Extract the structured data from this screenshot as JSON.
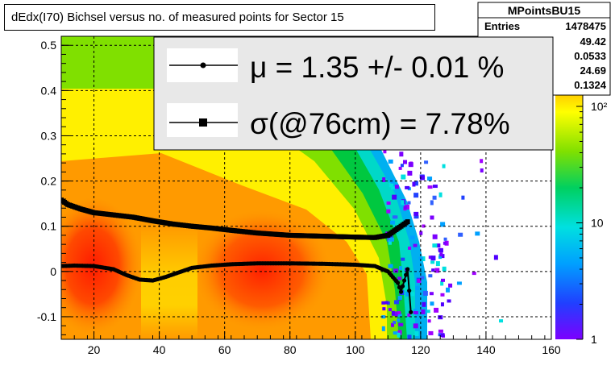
{
  "title": "dEdx(I70) Bichsel versus no. of measured points for Sector 15",
  "stats": {
    "name": "MPointsBU15",
    "entries_label": "Entries",
    "entries_value": "1478475",
    "partial_values": [
      "49.42",
      "0.0533",
      "24.69",
      "0.1324"
    ]
  },
  "legend": {
    "mu_text": "μ  =  1.35 +/-  0.01 %",
    "sigma_text": "σ(@76cm) =  7.78%"
  },
  "chart_data": {
    "type": "heatmap",
    "title": "dEdx(I70) Bichsel versus no. of measured points for Sector 15",
    "xlim": [
      10,
      160
    ],
    "ylim": [
      -0.15,
      0.52
    ],
    "x_ticks": [
      20,
      40,
      60,
      80,
      100,
      120,
      140,
      160
    ],
    "y_ticks": [
      -0.1,
      0,
      0.1,
      0.2,
      0.3,
      0.4,
      0.5
    ],
    "y_tick_labels": [
      "-0.1",
      "0",
      "0.1",
      "0.2",
      "0.3",
      "0.4",
      "0.5"
    ],
    "z_scale": "log",
    "z_ticks": [
      1,
      10,
      100
    ],
    "z_tick_labels": [
      "1",
      "10",
      "10²"
    ],
    "grid": true,
    "series": [
      {
        "name": "μ",
        "marker": "circle",
        "x": [
          10,
          14,
          20,
          26,
          30,
          34,
          38,
          42,
          46,
          50,
          56,
          62,
          70,
          80,
          90,
          100,
          106,
          110,
          113,
          114,
          116,
          117
        ],
        "y": [
          0.012,
          0.013,
          0.012,
          0.005,
          -0.008,
          -0.018,
          -0.02,
          -0.012,
          -0.002,
          0.008,
          0.013,
          0.016,
          0.018,
          0.018,
          0.017,
          0.015,
          0.012,
          0.0,
          -0.025,
          -0.045,
          0.005,
          -0.09
        ]
      },
      {
        "name": "σ(@76cm)",
        "marker": "square",
        "x": [
          10,
          12,
          16,
          20,
          26,
          32,
          38,
          44,
          50,
          56,
          62,
          70,
          80,
          90,
          100,
          106,
          110,
          113,
          116
        ],
        "y": [
          0.158,
          0.148,
          0.138,
          0.13,
          0.125,
          0.12,
          0.112,
          0.105,
          0.1,
          0.096,
          0.091,
          0.085,
          0.08,
          0.078,
          0.076,
          0.075,
          0.08,
          0.095,
          0.11
        ]
      }
    ]
  }
}
